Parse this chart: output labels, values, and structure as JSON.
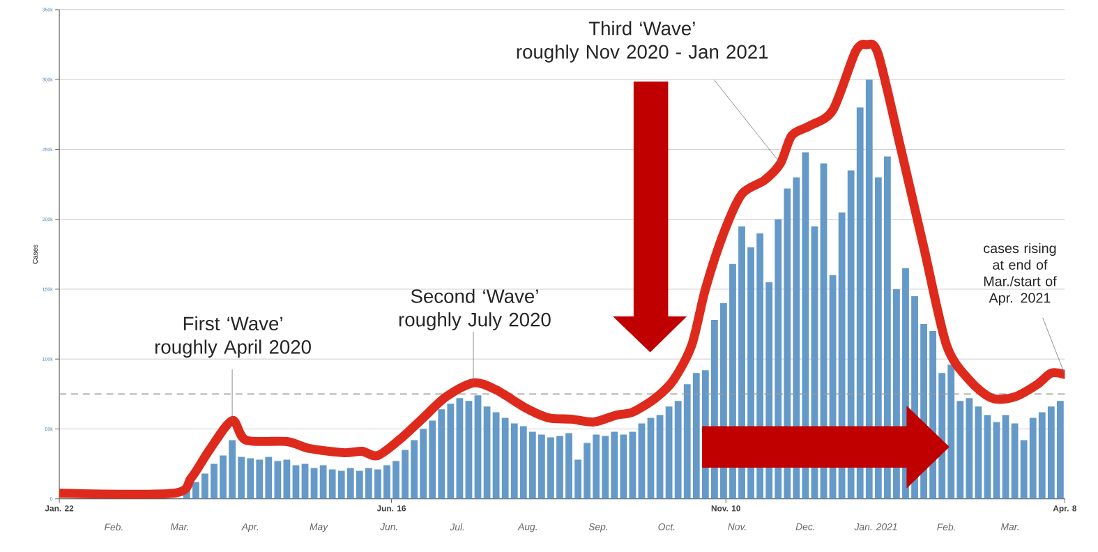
{
  "chart_data": {
    "type": "bar",
    "ylabel": "Cases",
    "annotations": [
      {
        "text": "First ‘Wave’\nroughly April 2020",
        "x": "2020-04-07",
        "y": 56000
      },
      {
        "text": "Second ‘Wave’\nroughly July 2020",
        "x": "2020-07-22",
        "y": 83000
      },
      {
        "text": "Third ‘Wave’\nroughly Nov 2020 - Jan 2021",
        "x": "2020-12-04",
        "y": 240000
      },
      {
        "text": "cases rising\nat end of\nMar./start of\nApr. 2021",
        "x": "2021-04-08",
        "y": 89000
      }
    ],
    "x": [
      "2020-01-22",
      "2020-01-26",
      "2020-01-30",
      "2020-02-03",
      "2020-02-07",
      "2020-02-11",
      "2020-02-15",
      "2020-02-19",
      "2020-02-23",
      "2020-02-27",
      "2020-03-02",
      "2020-03-06",
      "2020-03-10",
      "2020-03-14",
      "2020-03-18",
      "2020-03-22",
      "2020-03-26",
      "2020-03-30",
      "2020-04-03",
      "2020-04-07",
      "2020-04-11",
      "2020-04-15",
      "2020-04-19",
      "2020-04-23",
      "2020-04-27",
      "2020-05-01",
      "2020-05-05",
      "2020-05-09",
      "2020-05-13",
      "2020-05-17",
      "2020-05-21",
      "2020-05-25",
      "2020-05-29",
      "2020-06-02",
      "2020-06-06",
      "2020-06-10",
      "2020-06-14",
      "2020-06-18",
      "2020-06-22",
      "2020-06-26",
      "2020-06-30",
      "2020-07-04",
      "2020-07-08",
      "2020-07-12",
      "2020-07-16",
      "2020-07-20",
      "2020-07-24",
      "2020-07-28",
      "2020-08-01",
      "2020-08-05",
      "2020-08-09",
      "2020-08-13",
      "2020-08-17",
      "2020-08-21",
      "2020-08-25",
      "2020-08-29",
      "2020-09-02",
      "2020-09-06",
      "2020-09-10",
      "2020-09-14",
      "2020-09-18",
      "2020-09-22",
      "2020-09-26",
      "2020-09-30",
      "2020-10-04",
      "2020-10-08",
      "2020-10-12",
      "2020-10-16",
      "2020-10-20",
      "2020-10-24",
      "2020-10-28",
      "2020-11-01",
      "2020-11-05",
      "2020-11-09",
      "2020-11-13",
      "2020-11-17",
      "2020-11-21",
      "2020-11-25",
      "2020-11-29",
      "2020-12-03",
      "2020-12-07",
      "2020-12-11",
      "2020-12-15",
      "2020-12-19",
      "2020-12-23",
      "2020-12-27",
      "2020-12-31",
      "2021-01-04",
      "2021-01-08",
      "2021-01-12",
      "2021-01-16",
      "2021-01-20",
      "2021-01-24",
      "2021-01-28",
      "2021-02-01",
      "2021-02-05",
      "2021-02-09",
      "2021-02-13",
      "2021-02-17",
      "2021-02-21",
      "2021-02-25",
      "2021-03-01",
      "2021-03-05",
      "2021-03-09",
      "2021-03-13",
      "2021-03-17",
      "2021-03-21",
      "2021-03-25",
      "2021-03-29",
      "2021-04-02",
      "2021-04-06"
    ],
    "xlim": [
      "2020-01-22",
      "2021-04-08"
    ],
    "xticks": [
      {
        "value": "2020-01-22",
        "label": "Jan. 22"
      },
      {
        "value": "2020-06-16",
        "label": "Jun. 16"
      },
      {
        "value": "2020-11-10",
        "label": "Nov. 10"
      },
      {
        "value": "2021-04-08",
        "label": "Apr. 8"
      }
    ],
    "x2lim": [
      "2020-01-22",
      "2021-04-08"
    ],
    "x2ticks": [
      {
        "value": "2020-02-15",
        "label": "Feb."
      },
      {
        "value": "2020-03-15",
        "label": "Mar."
      },
      {
        "value": "2020-04-15",
        "label": "Apr."
      },
      {
        "value": "2020-05-15",
        "label": "May"
      },
      {
        "value": "2020-06-15",
        "label": "Jun."
      },
      {
        "value": "2020-07-15",
        "label": "Jul."
      },
      {
        "value": "2020-08-15",
        "label": "Aug."
      },
      {
        "value": "2020-09-15",
        "label": "Sep."
      },
      {
        "value": "2020-10-15",
        "label": "Oct."
      },
      {
        "value": "2020-11-15",
        "label": "Nov."
      },
      {
        "value": "2020-12-15",
        "label": "Dec."
      },
      {
        "value": "2021-01-15",
        "label": "Jan. 2021"
      },
      {
        "value": "2021-02-15",
        "label": "Feb."
      },
      {
        "value": "2021-03-15",
        "label": "Mar."
      }
    ],
    "ylim": [
      0,
      350000
    ],
    "yticks": [
      0,
      {
        "value": 50000,
        "label": "50k"
      },
      {
        "value": 100000,
        "label": "100k"
      },
      {
        "value": 150000,
        "label": "150k"
      },
      {
        "value": 200000,
        "label": "200k"
      },
      {
        "value": 250000,
        "label": "250k"
      },
      {
        "value": 300000,
        "label": "300k"
      },
      {
        "value": 350000,
        "label": "350k"
      }
    ],
    "grid": "y",
    "ref_lines": [
      {
        "axis": "y",
        "value": 75000,
        "color": "#9a9a9a",
        "line_style": "dashed"
      }
    ],
    "series": [
      {
        "color": "#6499c8",
        "values": [
          0,
          0,
          0,
          0,
          0,
          0,
          0,
          0,
          0,
          0,
          0,
          0,
          null,
          null,
          6000,
          12000,
          18000,
          25000,
          31000,
          42000,
          30000,
          29000,
          28000,
          30000,
          27000,
          28000,
          24000,
          25000,
          22000,
          24000,
          21000,
          20000,
          22000,
          20000,
          22000,
          21000,
          24000,
          27000,
          35000,
          42000,
          50000,
          56000,
          64000,
          68000,
          72000,
          70000,
          74000,
          66000,
          62000,
          58000,
          54000,
          52000,
          48000,
          46000,
          44000,
          45000,
          47000,
          28000,
          40000,
          46000,
          45000,
          48000,
          46000,
          48000,
          54000,
          58000,
          60000,
          66000,
          70000,
          82000,
          90000,
          92000,
          128000,
          140000,
          168000,
          195000,
          180000,
          190000,
          155000,
          200000,
          222000,
          230000,
          248000,
          195000,
          240000,
          160000,
          205000,
          235000,
          280000,
          300000,
          230000,
          245000,
          150000,
          165000,
          145000,
          125000,
          120000,
          90000,
          96000,
          70000,
          72000,
          66000,
          60000,
          55000,
          60000,
          54000,
          42000,
          58000,
          62000,
          66000,
          70000
        ]
      },
      {
        "type": "line",
        "color": "#de2a1c",
        "x": [
          "2020-01-22",
          "2020-03-12",
          "2020-03-20",
          "2020-03-28",
          "2020-04-07",
          "2020-04-13",
          "2020-05-01",
          "2020-05-11",
          "2020-05-26",
          "2020-06-03",
          "2020-06-10",
          "2020-06-20",
          "2020-06-30",
          "2020-07-10",
          "2020-07-22",
          "2020-08-01",
          "2020-08-14",
          "2020-08-24",
          "2020-09-03",
          "2020-09-13",
          "2020-09-23",
          "2020-09-30",
          "2020-10-10",
          "2020-10-18",
          "2020-10-26",
          "2020-11-01",
          "2020-11-09",
          "2020-11-17",
          "2020-11-27",
          "2020-12-04",
          "2020-12-09",
          "2020-12-17",
          "2020-12-27",
          "2021-01-06",
          "2021-01-11",
          "2021-01-16",
          "2021-01-26",
          "2021-02-05",
          "2021-02-15",
          "2021-02-25",
          "2021-03-07",
          "2021-03-17",
          "2021-03-27",
          "2021-04-02",
          "2021-04-08"
        ],
        "values": [
          4000,
          4000,
          15000,
          35000,
          56000,
          42000,
          41000,
          36000,
          33000,
          34000,
          31000,
          43000,
          58000,
          73000,
          83000,
          78000,
          65000,
          58000,
          57000,
          55000,
          60000,
          62000,
          72000,
          85000,
          110000,
          150000,
          190000,
          218000,
          228000,
          240000,
          260000,
          267000,
          278000,
          320000,
          325000,
          318000,
          250000,
          180000,
          110000,
          85000,
          72000,
          73000,
          82000,
          90000,
          89000
        ]
      }
    ]
  }
}
